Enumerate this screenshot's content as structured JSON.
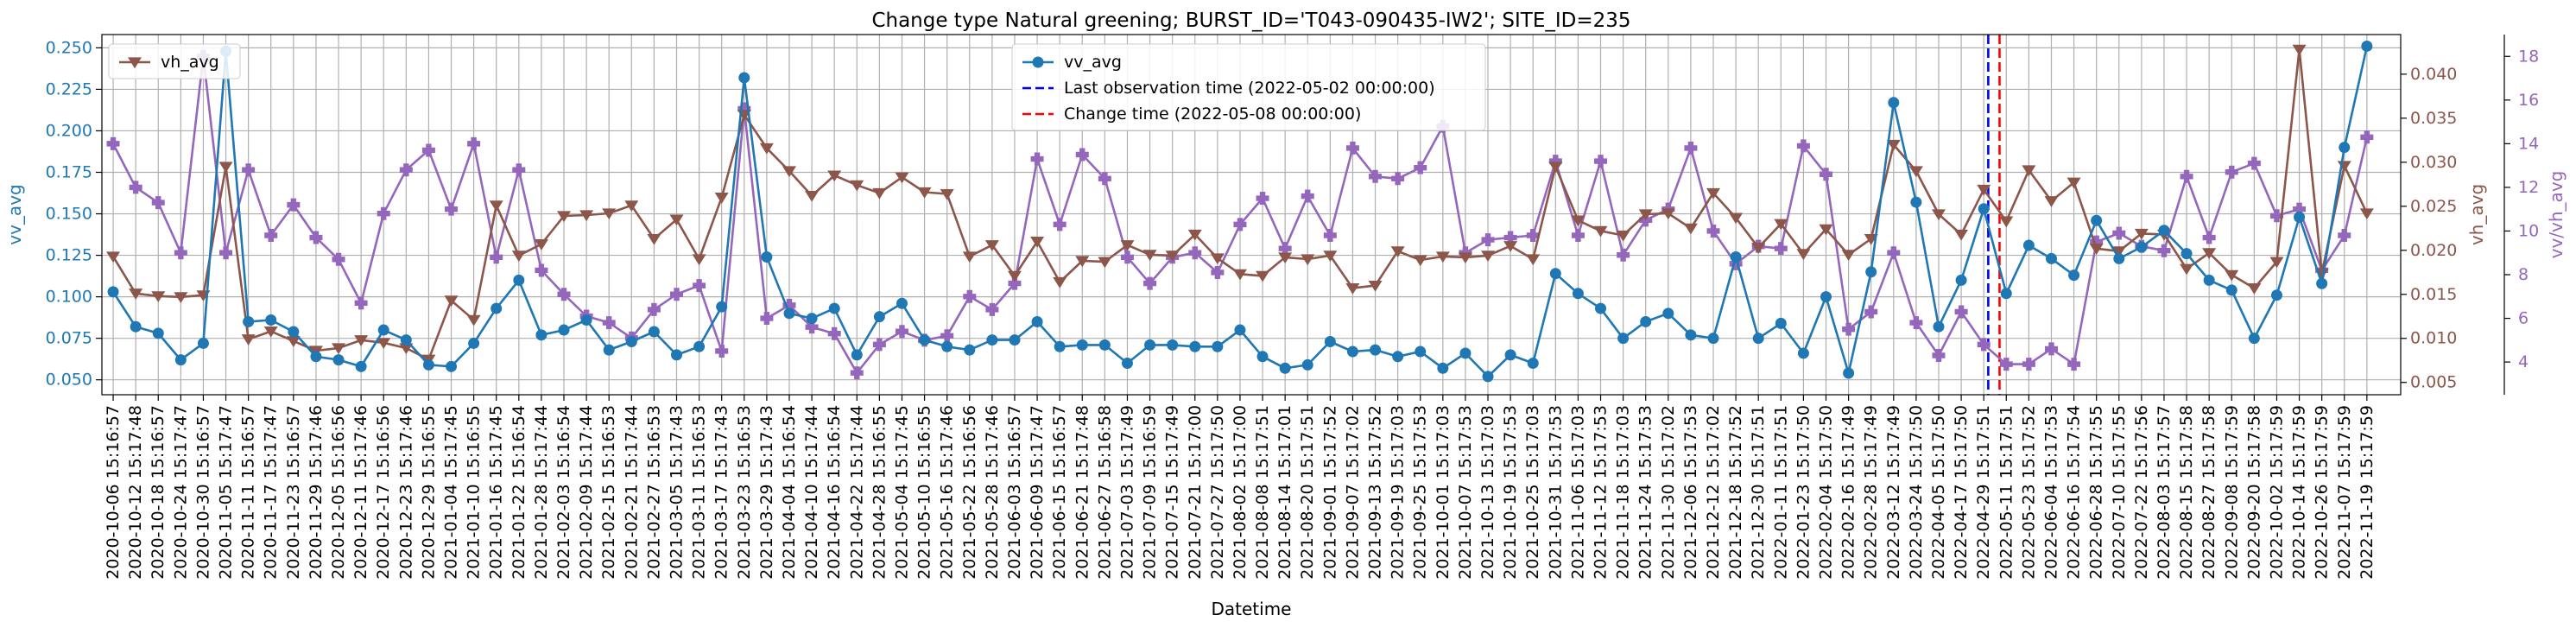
{
  "chart_data": {
    "type": "line",
    "title": "Change type Natural greening; BURST_ID='T043-090435-IW2'; SITE_ID=235",
    "xlabel": "Datetime",
    "x": [
      "2020-10-06 15:16:57",
      "2020-10-12 15:17:48",
      "2020-10-18 15:16:57",
      "2020-10-24 15:17:47",
      "2020-10-30 15:16:57",
      "2020-11-05 15:17:47",
      "2020-11-11 15:16:57",
      "2020-11-17 15:17:47",
      "2020-11-23 15:16:57",
      "2020-11-29 15:17:46",
      "2020-12-05 15:16:56",
      "2020-12-11 15:17:46",
      "2020-12-17 15:16:56",
      "2020-12-23 15:17:46",
      "2020-12-29 15:16:55",
      "2021-01-04 15:17:45",
      "2021-01-10 15:16:55",
      "2021-01-16 15:17:45",
      "2021-01-22 15:16:54",
      "2021-01-28 15:17:44",
      "2021-02-03 15:16:54",
      "2021-02-09 15:17:44",
      "2021-02-15 15:16:53",
      "2021-02-21 15:17:44",
      "2021-02-27 15:16:53",
      "2021-03-05 15:17:43",
      "2021-03-11 15:16:53",
      "2021-03-17 15:17:43",
      "2021-03-23 15:16:53",
      "2021-03-29 15:17:43",
      "2021-04-04 15:16:54",
      "2021-04-10 15:17:44",
      "2021-04-16 15:16:54",
      "2021-04-22 15:17:44",
      "2021-04-28 15:16:55",
      "2021-05-04 15:17:45",
      "2021-05-10 15:16:55",
      "2021-05-16 15:17:46",
      "2021-05-22 15:16:56",
      "2021-05-28 15:17:46",
      "2021-06-03 15:16:57",
      "2021-06-09 15:17:47",
      "2021-06-15 15:16:57",
      "2021-06-21 15:17:48",
      "2021-06-27 15:16:58",
      "2021-07-03 15:17:49",
      "2021-07-09 15:16:59",
      "2021-07-15 15:17:49",
      "2021-07-21 15:17:00",
      "2021-07-27 15:17:50",
      "2021-08-02 15:17:00",
      "2021-08-08 15:17:51",
      "2021-08-14 15:17:01",
      "2021-08-20 15:17:51",
      "2021-09-01 15:17:52",
      "2021-09-07 15:17:02",
      "2021-09-13 15:17:52",
      "2021-09-19 15:17:03",
      "2021-09-25 15:17:53",
      "2021-10-01 15:17:03",
      "2021-10-07 15:17:53",
      "2021-10-13 15:17:03",
      "2021-10-19 15:17:53",
      "2021-10-25 15:17:03",
      "2021-10-31 15:17:53",
      "2021-11-06 15:17:03",
      "2021-11-12 15:17:53",
      "2021-11-18 15:17:03",
      "2021-11-24 15:17:53",
      "2021-11-30 15:17:02",
      "2021-12-06 15:17:53",
      "2021-12-12 15:17:02",
      "2021-12-18 15:17:52",
      "2021-12-30 15:17:51",
      "2022-01-11 15:17:51",
      "2022-01-23 15:17:50",
      "2022-02-04 15:17:50",
      "2022-02-16 15:17:49",
      "2022-02-28 15:17:49",
      "2022-03-12 15:17:49",
      "2022-03-24 15:17:50",
      "2022-04-05 15:17:50",
      "2022-04-17 15:17:50",
      "2022-04-29 15:17:51",
      "2022-05-11 15:17:51",
      "2022-05-23 15:17:52",
      "2022-06-04 15:17:53",
      "2022-06-16 15:17:54",
      "2022-06-28 15:17:55",
      "2022-07-10 15:17:55",
      "2022-07-22 15:17:56",
      "2022-08-03 15:17:57",
      "2022-08-15 15:17:58",
      "2022-08-27 15:17:58",
      "2022-09-08 15:17:59",
      "2022-09-20 15:17:58",
      "2022-10-02 15:17:59",
      "2022-10-14 15:17:59",
      "2022-10-26 15:17:59",
      "2022-11-07 15:17:59",
      "2022-11-19 15:17:59"
    ],
    "tick_labels": [
      "2020-10-06 15:16:57",
      "2020-10-12 15:17:48",
      "2020-10-18 15:16:57",
      "2020-10-24 15:17:47",
      "2020-10-30 15:16:57",
      "2020-11-05 15:17:47",
      "2020-11-11 15:16:57",
      "2020-11-17 15:17:47",
      "2020-11-23 15:16:57",
      "2020-11-29 15:17:46",
      "2020-12-05 15:16:56",
      "2020-12-11 15:17:46",
      "2020-12-17 15:16:56",
      "2020-12-23 15:17:46",
      "2020-12-29 15:16:55",
      "2021-01-04 15:17:45",
      "2021-01-10 15:16:55",
      "2021-01-16 15:17:45",
      "2021-01-22 15:16:54",
      "2021-01-28 15:17:44",
      "2021-02-03 15:16:54",
      "2021-02-09 15:17:44",
      "2021-02-15 15:16:53",
      "2021-02-21 15:17:44",
      "2021-02-27 15:16:53",
      "2021-03-05 15:17:43",
      "2021-03-11 15:16:53",
      "2021-03-17 15:17:43",
      "2021-03-23 15:16:53",
      "2021-03-29 15:17:43",
      "2021-04-04 15:16:54",
      "2021-04-10 15:17:44",
      "2021-04-16 15:16:54",
      "2021-04-22 15:17:44",
      "2021-04-28 15:16:55",
      "2021-05-04 15:17:45",
      "2021-05-10 15:16:55",
      "2021-05-16 15:17:46",
      "2021-05-22 15:16:56",
      "2021-05-28 15:17:46",
      "2021-06-03 15:16:57",
      "2021-06-09 15:17:47",
      "2021-06-15 15:16:57",
      "2021-06-21 15:17:48",
      "2021-06-27 15:16:58",
      "2021-07-03 15:17:49",
      "2021-07-09 15:16:59",
      "2021-07-15 15:17:49",
      "2021-07-21 15:17:00",
      "2021-07-27 15:17:50",
      "2021-08-02 15:17:00",
      "2021-08-08 15:17:51",
      "2021-08-14 15:17:01",
      "2021-08-20 15:17:51",
      "2021-09-01 15:17:52",
      "2021-09-07 15:17:02",
      "2021-09-13 15:17:52",
      "2021-09-19 15:17:03",
      "2021-09-25 15:17:53",
      "2021-10-01 15:17:03",
      "2021-10-07 15:17:53",
      "2021-10-13 15:17:03",
      "2021-10-19 15:17:53",
      "2021-10-25 15:17:03",
      "2021-10-31 15:17:53",
      "2021-11-06 15:17:03",
      "2021-11-12 15:17:53",
      "2021-11-18 15:17:03",
      "2021-11-24 15:17:53",
      "2021-11-30 15:17:02",
      "2021-12-06 15:17:53",
      "2021-12-12 15:17:02",
      "2021-12-18 15:17:52",
      "2021-12-30 15:17:51",
      "2022-01-11 15:17:51",
      "2022-01-23 15:17:50",
      "2022-02-04 15:17:50",
      "2022-02-16 15:17:49",
      "2022-02-28 15:17:49",
      "2022-03-12 15:17:49",
      "2022-03-24 15:17:50",
      "2022-04-05 15:17:50",
      "2022-04-17 15:17:50",
      "2022-04-29 15:17:51",
      "2022-05-11 15:17:51",
      "2022-05-23 15:17:52",
      "2022-06-04 15:17:53",
      "2022-06-16 15:17:54",
      "2022-06-28 15:17:55",
      "2022-07-10 15:17:55",
      "2022-07-22 15:17:56",
      "2022-08-03 15:17:57",
      "2022-08-15 15:17:58",
      "2022-08-27 15:17:58",
      "2022-09-08 15:17:59",
      "2022-09-20 15:17:58",
      "2022-10-02 15:17:59",
      "2022-10-14 15:17:59",
      "2022-10-26 15:17:59",
      "2022-11-07 15:17:59",
      "2022-11-19 15:17:59"
    ],
    "axes": {
      "vv": {
        "label": "vv_avg",
        "ylim": [
          0.041,
          0.258
        ],
        "ticks": [
          "0.050",
          "0.075",
          "0.100",
          "0.125",
          "0.150",
          "0.175",
          "0.200",
          "0.225",
          "0.250"
        ],
        "color": "#1f77b4"
      },
      "vh": {
        "label": "vh_avg",
        "ylim": [
          0.0036,
          0.0445
        ],
        "ticks": [
          "0.005",
          "0.010",
          "0.015",
          "0.020",
          "0.025",
          "0.030",
          "0.035",
          "0.040"
        ],
        "color": "#8c564b"
      },
      "ratio": {
        "label": "vv/vh_avg",
        "ylim": [
          2.5,
          19.0
        ],
        "ticks": [
          "4",
          "6",
          "8",
          "10",
          "12",
          "14",
          "16",
          "18"
        ],
        "color": "#9467bd"
      }
    },
    "series": [
      {
        "name": "vv_avg",
        "axis": "vv",
        "color": "#1f77b4",
        "marker": "circle",
        "values": [
          0.103,
          0.082,
          0.078,
          0.062,
          0.072,
          0.248,
          0.085,
          0.086,
          0.079,
          0.064,
          0.062,
          0.058,
          0.08,
          0.074,
          0.059,
          0.058,
          0.072,
          0.093,
          0.11,
          0.077,
          0.08,
          0.086,
          0.068,
          0.073,
          0.079,
          0.065,
          0.07,
          0.094,
          0.232,
          0.124,
          0.09,
          0.087,
          0.093,
          0.065,
          0.088,
          0.096,
          0.074,
          0.07,
          0.068,
          0.074,
          0.074,
          0.085,
          0.07,
          0.071,
          0.071,
          0.06,
          0.071,
          0.071,
          0.07,
          0.07,
          0.08,
          0.064,
          0.057,
          0.059,
          0.073,
          0.067,
          0.068,
          0.064,
          0.067,
          0.057,
          0.066,
          0.052,
          0.065,
          0.06,
          0.114,
          0.102,
          0.093,
          0.075,
          0.085,
          0.09,
          0.077,
          0.075,
          0.124,
          0.075,
          0.084,
          0.066,
          0.1,
          0.054,
          0.115,
          0.217,
          0.157,
          0.082,
          0.11,
          0.153,
          0.102,
          0.131,
          0.123,
          0.113,
          0.146,
          0.123,
          0.13,
          0.14,
          0.126,
          0.11,
          0.104,
          0.075,
          0.101,
          0.148,
          0.108,
          0.19,
          0.251
        ]
      },
      {
        "name": "vh_avg",
        "axis": "vh",
        "color": "#8c564b",
        "marker": "triangle-down",
        "values": [
          0.0193,
          0.0151,
          0.0148,
          0.0147,
          0.0149,
          0.0295,
          0.0099,
          0.0108,
          0.0097,
          0.0086,
          0.0089,
          0.0098,
          0.0095,
          0.0089,
          0.0076,
          0.0143,
          0.0121,
          0.0251,
          0.0194,
          0.0207,
          0.0239,
          0.024,
          0.0242,
          0.0251,
          0.0213,
          0.0235,
          0.019,
          0.026,
          0.0354,
          0.0316,
          0.029,
          0.0262,
          0.0285,
          0.0274,
          0.0265,
          0.0283,
          0.0266,
          0.0264,
          0.0193,
          0.0206,
          0.0171,
          0.021,
          0.0164,
          0.0188,
          0.0187,
          0.0206,
          0.0195,
          0.0194,
          0.0218,
          0.0191,
          0.0173,
          0.0171,
          0.0192,
          0.019,
          0.0194,
          0.0157,
          0.016,
          0.0199,
          0.0189,
          0.0193,
          0.0192,
          0.0194,
          0.0205,
          0.019,
          0.0295,
          0.0234,
          0.0222,
          0.0217,
          0.0241,
          0.0242,
          0.0225,
          0.0265,
          0.0237,
          0.0203,
          0.023,
          0.0196,
          0.0224,
          0.0195,
          0.0213,
          0.032,
          0.029,
          0.0241,
          0.0218,
          0.0269,
          0.0233,
          0.0291,
          0.0256,
          0.0277,
          0.0202,
          0.0199,
          0.0219,
          0.0218,
          0.0179,
          0.0197,
          0.0172,
          0.0157,
          0.0187,
          0.0428,
          0.0174,
          0.0296,
          0.0242
        ]
      },
      {
        "name": "vv/vh_avg",
        "axis": "ratio",
        "color": "#9467bd",
        "marker": "plus",
        "values": [
          14.0,
          12.0,
          11.3,
          9.0,
          18.0,
          9.0,
          12.8,
          9.8,
          11.2,
          9.7,
          8.7,
          6.7,
          10.8,
          12.8,
          13.7,
          11.0,
          14.0,
          8.8,
          12.8,
          8.2,
          7.1,
          6.1,
          5.8,
          5.1,
          6.4,
          7.1,
          7.5,
          4.5,
          15.6,
          6.0,
          6.6,
          5.6,
          5.3,
          3.5,
          4.8,
          5.4,
          5.0,
          5.2,
          7.0,
          6.4,
          7.6,
          13.3,
          10.3,
          13.5,
          12.4,
          8.8,
          7.6,
          8.8,
          9.0,
          8.1,
          10.3,
          11.5,
          9.2,
          11.6,
          9.8,
          13.8,
          12.5,
          12.4,
          12.9,
          14.8,
          9.0,
          9.6,
          9.7,
          9.8,
          13.2,
          9.8,
          13.2,
          8.9,
          10.5,
          11.0,
          13.8,
          10.0,
          8.5,
          9.3,
          9.2,
          13.9,
          12.6,
          5.5,
          6.3,
          9.0,
          5.8,
          4.3,
          6.3,
          4.8,
          3.9,
          3.9,
          4.6,
          3.9,
          9.5,
          9.9,
          9.3,
          9.1,
          12.5,
          9.7,
          12.7,
          13.1,
          10.7,
          11.0,
          8.2,
          9.8,
          14.3
        ]
      }
    ],
    "vlines": [
      {
        "label": "Last observation time (2022-05-02 00:00:00)",
        "color": "#0000ff",
        "index": 83.2
      },
      {
        "label": "Change time (2022-05-08 00:00:00)",
        "color": "#ff0000",
        "index": 83.7
      }
    ],
    "legends": {
      "left": {
        "placement": "upper-left",
        "items": [
          "vh_avg"
        ]
      },
      "center": {
        "placement": "upper-center",
        "items": [
          "vv_avg",
          "Last observation time (2022-05-02 00:00:00)",
          "Change time (2022-05-08 00:00:00)"
        ]
      }
    },
    "grid": true
  }
}
